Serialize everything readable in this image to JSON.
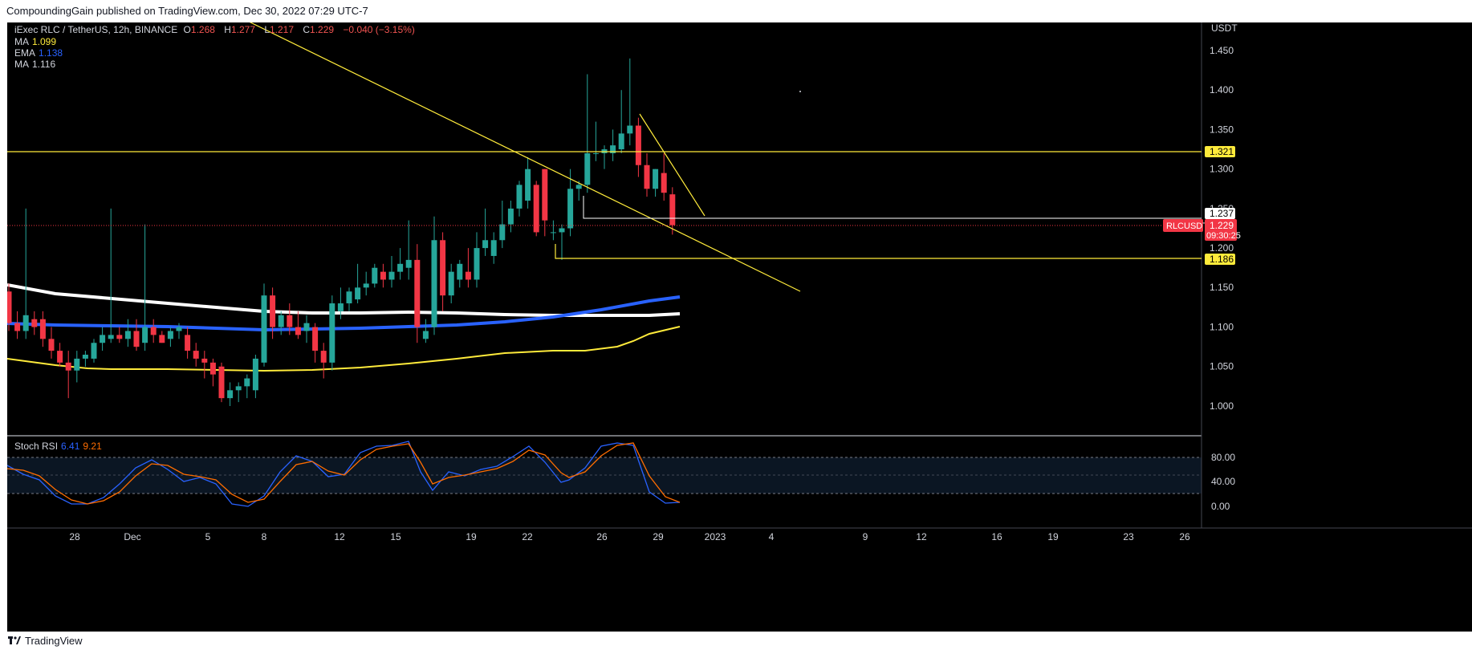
{
  "header": {
    "text": "CompoundingGain published on TradingView.com, Dec 30, 2022 07:29 UTC-7"
  },
  "symbol": {
    "name": "iExec RLC / TetherUS, 12h, BINANCE",
    "o_label": "O",
    "o": "1.268",
    "h_label": "H",
    "h": "1.277",
    "l_label": "L",
    "l": "1.217",
    "c_label": "C",
    "c": "1.229",
    "change": "−0.040 (−3.15%)"
  },
  "indicators": [
    {
      "label": "MA",
      "value": "1.099",
      "color": "#ffeb3b"
    },
    {
      "label": "EMA",
      "value": "1.138",
      "color": "#2962ff"
    },
    {
      "label": "MA",
      "value": "1.116",
      "color": "#ffffff"
    }
  ],
  "price_axis": {
    "currency": "USDT",
    "ticks": [
      "1.450",
      "1.400",
      "1.350",
      "1.300",
      "1.250",
      "1.200",
      "1.150",
      "1.100",
      "1.050",
      "1.000"
    ],
    "markers": [
      {
        "label": "1.321",
        "style": "yellow"
      },
      {
        "label": "1.237",
        "style": "white"
      },
      {
        "label": "1.186",
        "style": "yellow"
      }
    ],
    "last_price": {
      "symbol": "RLCUSDT",
      "price": "1.229",
      "countdown": "09:30:25",
      "color": "#f23645"
    }
  },
  "stoch_rsi": {
    "label": "Stoch RSI",
    "k": "6.41",
    "d": "9.21",
    "k_color": "#2962ff",
    "d_color": "#ff6d00",
    "ticks": [
      "80.00",
      "40.00",
      "0.00"
    ]
  },
  "time_axis": {
    "ticks": [
      "28",
      "Dec",
      "5",
      "8",
      "12",
      "15",
      "19",
      "22",
      "26",
      "29",
      "2023",
      "4",
      "9",
      "12",
      "16",
      "19",
      "23",
      "26"
    ]
  },
  "footer": {
    "brand": "TradingView"
  },
  "chart_data": {
    "type": "candlestick",
    "symbol": "RLCUSDT",
    "interval": "12h",
    "ylim": [
      0.97,
      1.47
    ],
    "candles": [
      {
        "o": 1.145,
        "h": 1.155,
        "l": 1.095,
        "c": 1.105
      },
      {
        "o": 1.105,
        "h": 1.12,
        "l": 1.085,
        "c": 1.095
      },
      {
        "o": 1.095,
        "h": 1.25,
        "l": 1.085,
        "c": 1.115
      },
      {
        "o": 1.11,
        "h": 1.12,
        "l": 1.09,
        "c": 1.1
      },
      {
        "o": 1.11,
        "h": 1.12,
        "l": 1.075,
        "c": 1.085
      },
      {
        "o": 1.085,
        "h": 1.1,
        "l": 1.06,
        "c": 1.07
      },
      {
        "o": 1.07,
        "h": 1.08,
        "l": 1.05,
        "c": 1.055
      },
      {
        "o": 1.055,
        "h": 1.07,
        "l": 1.01,
        "c": 1.045
      },
      {
        "o": 1.045,
        "h": 1.07,
        "l": 1.03,
        "c": 1.06
      },
      {
        "o": 1.06,
        "h": 1.07,
        "l": 1.05,
        "c": 1.065
      },
      {
        "o": 1.06,
        "h": 1.085,
        "l": 1.055,
        "c": 1.08
      },
      {
        "o": 1.08,
        "h": 1.1,
        "l": 1.07,
        "c": 1.09
      },
      {
        "o": 1.085,
        "h": 1.25,
        "l": 1.08,
        "c": 1.09
      },
      {
        "o": 1.09,
        "h": 1.1,
        "l": 1.08,
        "c": 1.085
      },
      {
        "o": 1.085,
        "h": 1.11,
        "l": 1.075,
        "c": 1.095
      },
      {
        "o": 1.095,
        "h": 1.11,
        "l": 1.07,
        "c": 1.075
      },
      {
        "o": 1.08,
        "h": 1.23,
        "l": 1.07,
        "c": 1.1
      },
      {
        "o": 1.1,
        "h": 1.11,
        "l": 1.08,
        "c": 1.09
      },
      {
        "o": 1.09,
        "h": 1.095,
        "l": 1.08,
        "c": 1.08
      },
      {
        "o": 1.085,
        "h": 1.1,
        "l": 1.075,
        "c": 1.095
      },
      {
        "o": 1.095,
        "h": 1.105,
        "l": 1.085,
        "c": 1.1
      },
      {
        "o": 1.09,
        "h": 1.1,
        "l": 1.06,
        "c": 1.07
      },
      {
        "o": 1.07,
        "h": 1.08,
        "l": 1.05,
        "c": 1.06
      },
      {
        "o": 1.06,
        "h": 1.07,
        "l": 1.035,
        "c": 1.055
      },
      {
        "o": 1.055,
        "h": 1.06,
        "l": 1.025,
        "c": 1.04
      },
      {
        "o": 1.05,
        "h": 1.055,
        "l": 1.005,
        "c": 1.01
      },
      {
        "o": 1.01,
        "h": 1.03,
        "l": 1.0,
        "c": 1.02
      },
      {
        "o": 1.02,
        "h": 1.03,
        "l": 1.005,
        "c": 1.025
      },
      {
        "o": 1.025,
        "h": 1.04,
        "l": 1.01,
        "c": 1.035
      },
      {
        "o": 1.02,
        "h": 1.065,
        "l": 1.01,
        "c": 1.06
      },
      {
        "o": 1.055,
        "h": 1.155,
        "l": 1.05,
        "c": 1.14
      },
      {
        "o": 1.14,
        "h": 1.15,
        "l": 1.085,
        "c": 1.1
      },
      {
        "o": 1.1,
        "h": 1.12,
        "l": 1.09,
        "c": 1.115
      },
      {
        "o": 1.115,
        "h": 1.13,
        "l": 1.09,
        "c": 1.1
      },
      {
        "o": 1.1,
        "h": 1.12,
        "l": 1.085,
        "c": 1.09
      },
      {
        "o": 1.095,
        "h": 1.115,
        "l": 1.08,
        "c": 1.105
      },
      {
        "o": 1.1,
        "h": 1.105,
        "l": 1.055,
        "c": 1.07
      },
      {
        "o": 1.07,
        "h": 1.08,
        "l": 1.035,
        "c": 1.055
      },
      {
        "o": 1.055,
        "h": 1.14,
        "l": 1.045,
        "c": 1.13
      },
      {
        "o": 1.12,
        "h": 1.15,
        "l": 1.11,
        "c": 1.13
      },
      {
        "o": 1.13,
        "h": 1.15,
        "l": 1.12,
        "c": 1.145
      },
      {
        "o": 1.135,
        "h": 1.18,
        "l": 1.13,
        "c": 1.15
      },
      {
        "o": 1.15,
        "h": 1.17,
        "l": 1.14,
        "c": 1.155
      },
      {
        "o": 1.155,
        "h": 1.18,
        "l": 1.15,
        "c": 1.175
      },
      {
        "o": 1.17,
        "h": 1.18,
        "l": 1.15,
        "c": 1.16
      },
      {
        "o": 1.16,
        "h": 1.19,
        "l": 1.15,
        "c": 1.17
      },
      {
        "o": 1.17,
        "h": 1.2,
        "l": 1.16,
        "c": 1.18
      },
      {
        "o": 1.175,
        "h": 1.235,
        "l": 1.16,
        "c": 1.185
      },
      {
        "o": 1.185,
        "h": 1.205,
        "l": 1.08,
        "c": 1.1
      },
      {
        "o": 1.085,
        "h": 1.11,
        "l": 1.08,
        "c": 1.095
      },
      {
        "o": 1.1,
        "h": 1.24,
        "l": 1.09,
        "c": 1.21
      },
      {
        "o": 1.21,
        "h": 1.22,
        "l": 1.12,
        "c": 1.14
      },
      {
        "o": 1.14,
        "h": 1.18,
        "l": 1.13,
        "c": 1.17
      },
      {
        "o": 1.16,
        "h": 1.185,
        "l": 1.15,
        "c": 1.18
      },
      {
        "o": 1.17,
        "h": 1.2,
        "l": 1.15,
        "c": 1.16
      },
      {
        "o": 1.16,
        "h": 1.22,
        "l": 1.15,
        "c": 1.2
      },
      {
        "o": 1.2,
        "h": 1.25,
        "l": 1.19,
        "c": 1.21
      },
      {
        "o": 1.19,
        "h": 1.22,
        "l": 1.18,
        "c": 1.21
      },
      {
        "o": 1.21,
        "h": 1.26,
        "l": 1.2,
        "c": 1.23
      },
      {
        "o": 1.23,
        "h": 1.26,
        "l": 1.22,
        "c": 1.25
      },
      {
        "o": 1.25,
        "h": 1.285,
        "l": 1.24,
        "c": 1.28
      },
      {
        "o": 1.26,
        "h": 1.315,
        "l": 1.25,
        "c": 1.3
      },
      {
        "o": 1.28,
        "h": 1.285,
        "l": 1.215,
        "c": 1.22
      },
      {
        "o": 1.3,
        "h": 1.3,
        "l": 1.215,
        "c": 1.235
      },
      {
        "o": 1.22,
        "h": 1.235,
        "l": 1.21,
        "c": 1.22
      },
      {
        "o": 1.22,
        "h": 1.23,
        "l": 1.185,
        "c": 1.225
      },
      {
        "o": 1.225,
        "h": 1.3,
        "l": 1.215,
        "c": 1.275
      },
      {
        "o": 1.275,
        "h": 1.285,
        "l": 1.26,
        "c": 1.28
      },
      {
        "o": 1.28,
        "h": 1.42,
        "l": 1.27,
        "c": 1.32
      },
      {
        "o": 1.32,
        "h": 1.36,
        "l": 1.31,
        "c": 1.32
      },
      {
        "o": 1.32,
        "h": 1.33,
        "l": 1.3,
        "c": 1.325
      },
      {
        "o": 1.32,
        "h": 1.35,
        "l": 1.31,
        "c": 1.33
      },
      {
        "o": 1.325,
        "h": 1.4,
        "l": 1.32,
        "c": 1.345
      },
      {
        "o": 1.345,
        "h": 1.44,
        "l": 1.33,
        "c": 1.355
      },
      {
        "o": 1.355,
        "h": 1.365,
        "l": 1.29,
        "c": 1.305
      },
      {
        "o": 1.305,
        "h": 1.32,
        "l": 1.265,
        "c": 1.275
      },
      {
        "o": 1.275,
        "h": 1.3,
        "l": 1.265,
        "c": 1.3
      },
      {
        "o": 1.295,
        "h": 1.32,
        "l": 1.26,
        "c": 1.27
      },
      {
        "o": 1.268,
        "h": 1.277,
        "l": 1.217,
        "c": 1.229
      }
    ]
  }
}
